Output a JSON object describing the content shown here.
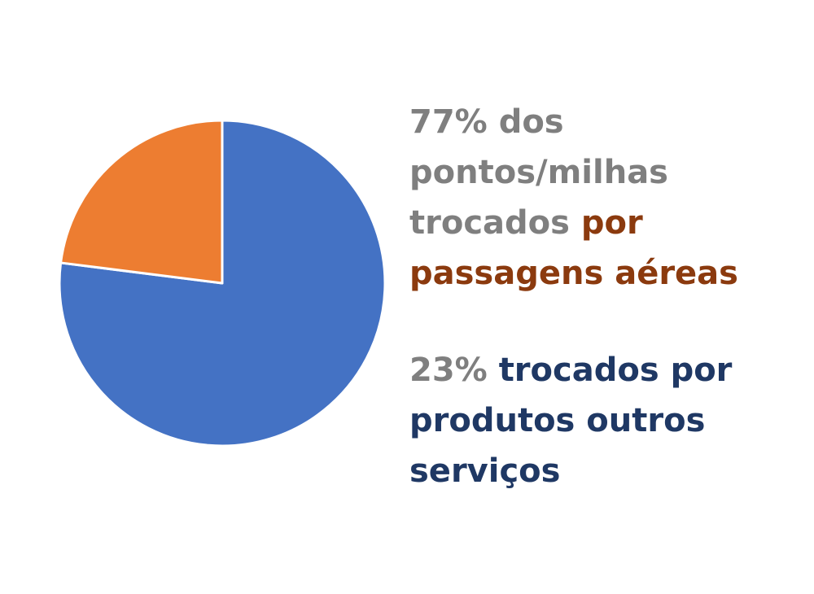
{
  "chart_data": {
    "type": "pie",
    "slices": [
      {
        "label": "passagens aéreas",
        "value": 77,
        "color": "#4472c4"
      },
      {
        "label": "produtos outros serviços",
        "value": 23,
        "color": "#ed7d31"
      }
    ],
    "start_angle": "12 o'clock",
    "direction": "clockwise",
    "legend": "right"
  },
  "annotations": {
    "first": {
      "percent": "77%",
      "muted_text": "dos pontos/milhas trocados",
      "highlight_text": "por passagens aéreas",
      "highlight_color": "#8b3a0e"
    },
    "second": {
      "percent": "23%",
      "highlight_text": "trocados por produtos outros serviços",
      "highlight_color": "#1f3864"
    },
    "muted_color": "#7f7f7f"
  }
}
